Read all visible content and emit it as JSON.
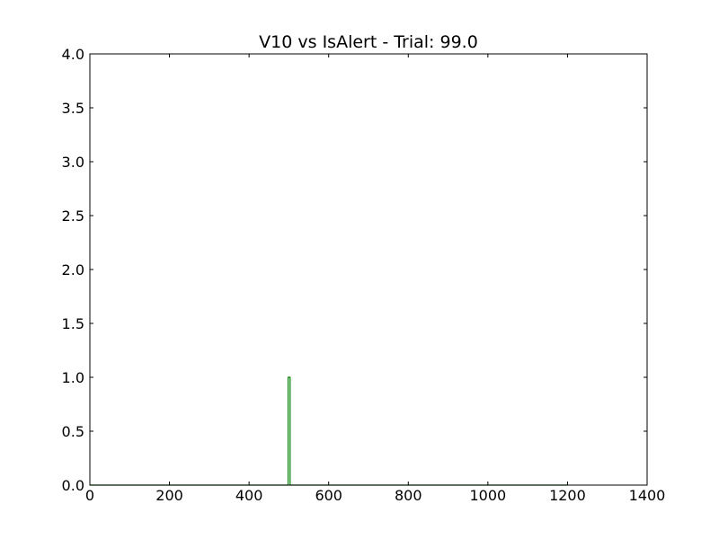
{
  "chart_data": {
    "type": "line",
    "title": "V10 vs IsAlert - Trial: 99.0",
    "xlabel": "",
    "ylabel": "",
    "xlim": [
      0,
      1400
    ],
    "ylim": [
      0.0,
      4.0
    ],
    "x_ticks": [
      0,
      200,
      400,
      600,
      800,
      1000,
      1200,
      1400
    ],
    "x_tick_labels": [
      "0",
      "200",
      "400",
      "600",
      "800",
      "1000",
      "1200",
      "1400"
    ],
    "y_ticks": [
      0.0,
      0.5,
      1.0,
      1.5,
      2.0,
      2.5,
      3.0,
      3.5,
      4.0
    ],
    "y_tick_labels": [
      "0.0",
      "0.5",
      "1.0",
      "1.5",
      "2.0",
      "2.5",
      "3.0",
      "3.5",
      "4.0"
    ],
    "grid": false,
    "legend": "none",
    "series": [
      {
        "color": "#008000",
        "x": [
          0,
          498,
          498,
          503,
          503,
          1200
        ],
        "y": [
          0,
          0,
          1,
          1,
          0,
          0
        ]
      }
    ]
  }
}
